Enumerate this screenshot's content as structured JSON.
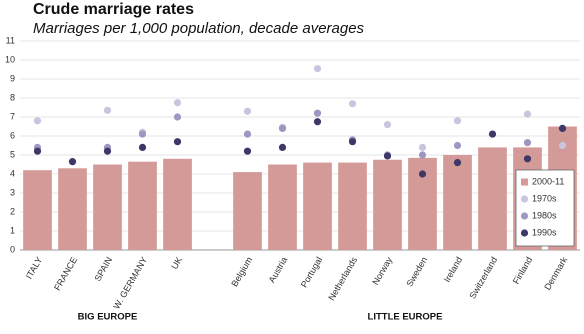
{
  "chart_data": {
    "type": "bar_dot",
    "title": "Crude marriage rates",
    "subtitle": "Marriages per 1,000 population, decade averages",
    "categories": [
      "ITALY",
      "FRANCE",
      "SPAIN",
      "W. GERMANY",
      "UK",
      null,
      "Belgium",
      "Austria",
      "Portugal",
      "Netherlands",
      "Norway",
      "Sweden",
      "Ireland",
      "Switzerland",
      "Finland",
      "Denmark"
    ],
    "group_labels": [
      "BIG EUROPE",
      "LITTLE EUROPE"
    ],
    "series": [
      {
        "name": "2000-11",
        "kind": "bar",
        "color": "#d49a98",
        "values": [
          4.2,
          4.3,
          4.5,
          4.65,
          4.8,
          null,
          4.1,
          4.5,
          4.6,
          4.6,
          4.75,
          4.85,
          5.0,
          5.4,
          5.4,
          6.5
        ]
      },
      {
        "name": "1970s",
        "kind": "dot",
        "color": "#c9c5de",
        "values": [
          6.8,
          null,
          7.35,
          6.2,
          7.75,
          null,
          7.3,
          6.45,
          9.55,
          7.7,
          6.6,
          5.4,
          6.8,
          null,
          7.15,
          5.5
        ]
      },
      {
        "name": "1980s",
        "kind": "dot",
        "color": "#9d97c2",
        "values": [
          5.4,
          null,
          5.4,
          6.1,
          7.0,
          null,
          6.1,
          6.4,
          7.2,
          5.8,
          5.0,
          5.0,
          5.5,
          null,
          5.65,
          null
        ]
      },
      {
        "name": "1990s",
        "kind": "dot",
        "color": "#3d3868",
        "values": [
          5.2,
          4.65,
          5.2,
          5.4,
          5.7,
          null,
          5.2,
          5.4,
          6.75,
          5.7,
          4.95,
          4.0,
          4.6,
          6.1,
          4.8,
          6.4
        ]
      }
    ],
    "ylim": [
      0,
      11
    ],
    "yticks": [
      0,
      1,
      2,
      3,
      4,
      5,
      6,
      7,
      8,
      9,
      10,
      11
    ],
    "grid": true,
    "legend": "lower right"
  }
}
